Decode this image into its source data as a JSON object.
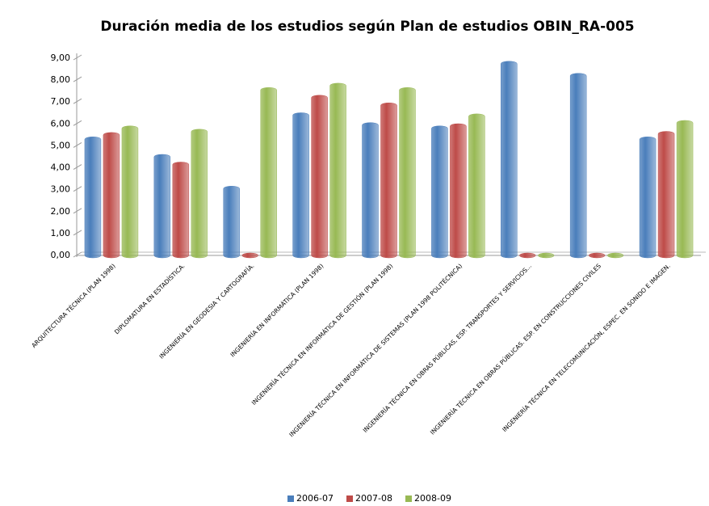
{
  "chart_data": {
    "type": "bar",
    "title": "Duración media de los estudios según Plan de estudios  OBIN_RA-005",
    "categories": [
      "ARQUITECTURA TÉCNICA (PLAN 1998)",
      "DIPLOMATURA EN ESTADÍSTICA.",
      "INGENIERÍA EN GEODESIA Y CARTOGRAFÍA.",
      "INGENIERÍA EN INFORMÁTICA (PLAN 1998)",
      "INGENIERÍA TÉCNICA EN INFORMÁTICA DE GESTIÓN (PLAN 1998)",
      "INGENIERÍA TÉCNICA EN INFORMÁTICA DE SISTEMAS (PLAN 1998 POLITÉCNICA)",
      "INGENIERÍA TÉCNICA EN OBRAS PÚBLICAS, ESP. TRANSPORTES Y SERVICIOS...",
      "INGENIERÍA TÉCNICA EN OBRAS PÚBLICAS. ESP. EN CONSTRUCCIONES CIVILES",
      "INGENIERÍA TÉCNICA EN TELECOMUNICACIÓN, ESPEC. EN SONIDO E IMAGEN."
    ],
    "series": [
      {
        "name": "2006-07",
        "color": "#4a7ebb",
        "values": [
          5.3,
          4.5,
          3.05,
          6.4,
          5.95,
          5.8,
          8.75,
          8.2,
          5.3
        ]
      },
      {
        "name": "2007-08",
        "color": "#be4b48",
        "values": [
          5.5,
          4.15,
          0,
          7.2,
          6.85,
          5.9,
          0,
          0,
          5.55
        ]
      },
      {
        "name": "2008-09",
        "color": "#98b954",
        "values": [
          5.8,
          5.65,
          7.55,
          7.75,
          7.55,
          6.35,
          0,
          0,
          6.05
        ]
      }
    ],
    "ylim": [
      0,
      9
    ],
    "yticks": [
      {
        "value": 0,
        "label": "0,00"
      },
      {
        "value": 1,
        "label": "1,00"
      },
      {
        "value": 2,
        "label": "2,00"
      },
      {
        "value": 3,
        "label": "3,00"
      },
      {
        "value": 4,
        "label": "4,00"
      },
      {
        "value": 5,
        "label": "5,00"
      },
      {
        "value": 6,
        "label": "6,00"
      },
      {
        "value": 7,
        "label": "7,00"
      },
      {
        "value": 8,
        "label": "8,00"
      },
      {
        "value": 9,
        "label": "9,00"
      }
    ],
    "legend": "bottom"
  }
}
